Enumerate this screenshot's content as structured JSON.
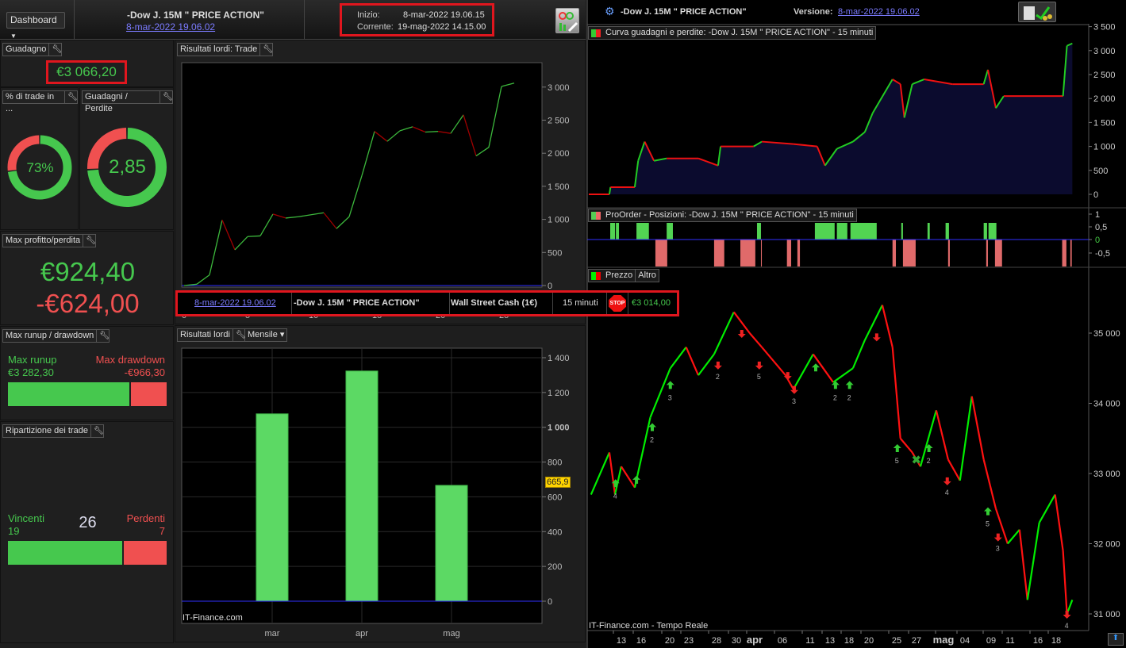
{
  "header": {
    "dashboard_label": "Dashboard",
    "strategy_title": "-Dow J. 15M \" PRICE ACTION\"",
    "strategy_date": "8-mar-2022 19.06.02",
    "start_label": "Inizio:",
    "start_value": "8-mar-2022 19.06.15",
    "current_label": "Corrente:",
    "current_value": "19-mag-2022 14.15.00"
  },
  "guadagno": {
    "title": "Guadagno",
    "value": "€3 066,20"
  },
  "pct_trade": {
    "title": "% di trade in ...",
    "value": "73%",
    "fraction": 0.73
  },
  "gain_loss": {
    "title": "Guadagni / Perdite",
    "value": "2,85",
    "ratio": 2.85
  },
  "max_pl": {
    "title": "Max profitto/perdita",
    "profit": "€924,40",
    "loss": "-€624,00"
  },
  "runup": {
    "title": "Max runup / drawdown",
    "runup_label": "Max runup",
    "runup_value": "€3 282,30",
    "drawdown_label": "Max drawdown",
    "drawdown_value": "-€966,30",
    "runup_amount": 3282.3,
    "drawdown_amount": 966.3
  },
  "ripartizione": {
    "title": "Ripartizione dei trade",
    "win_label": "Vincenti",
    "win_count": "19",
    "total": "26",
    "loss_label": "Perdenti",
    "loss_count": "7"
  },
  "colors": {
    "green": "#46c84e",
    "red": "#f05050",
    "equity_up": "#3cb83c",
    "equity_down": "#a00000",
    "axis_zero": "#3030ff",
    "bar": "#5cd964",
    "highlight": "#ffd400"
  },
  "chart_data": [
    {
      "type": "line",
      "title": "Risultati lordi: Trade",
      "xlabel": "",
      "ylabel": "",
      "x_ticks": [
        "0",
        "5",
        "10",
        "15",
        "20",
        "25"
      ],
      "y_ticks": [
        "0",
        "500",
        "1 000",
        "1 500",
        "2 000",
        "2 500",
        "3 000"
      ],
      "ylim": [
        0,
        3300
      ],
      "values": [
        0,
        20,
        160,
        990,
        540,
        740,
        750,
        1080,
        1020,
        1040,
        1070,
        1100,
        860,
        1040,
        1660,
        2330,
        2180,
        2340,
        2400,
        2320,
        2330,
        2300,
        2580,
        1960,
        2090,
        3010,
        3060
      ]
    },
    {
      "type": "bar",
      "title": "Risultati lordi",
      "period": "Mensile",
      "categories": [
        "mar",
        "apr",
        "mag"
      ],
      "values": [
        1077.0,
        1323.3,
        665.9
      ],
      "highlight_label": "665,9",
      "y_ticks": [
        "0",
        "200",
        "400",
        "600",
        "800",
        "1 000",
        "1 200",
        "1 400"
      ],
      "ylim": [
        -130,
        1460
      ],
      "watermark": "IT-Finance.com"
    },
    {
      "type": "line",
      "title": "Curva guadagni e perdite: -Dow J. 15M \" PRICE ACTION\" - 15 minuti",
      "y_ticks": [
        "0",
        "500",
        "1 000",
        "1 500",
        "2 000",
        "2 500",
        "3 000",
        "3 500"
      ],
      "points": [
        [
          "2022-03-08T19:00",
          0
        ],
        [
          "2022-03-11T20:00",
          0
        ],
        [
          "2022-03-12T00:00",
          150
        ],
        [
          "2022-03-15T14:00",
          150
        ],
        [
          "2022-03-16T02:00",
          700
        ],
        [
          "2022-03-17T01:00",
          1100
        ],
        [
          "2022-03-18T10:00",
          700
        ],
        [
          "2022-03-20T07:00",
          750
        ],
        [
          "2022-03-24T23:00",
          750
        ],
        [
          "2022-03-27T21:00",
          600
        ],
        [
          "2022-03-28T06:00",
          1000
        ],
        [
          "2022-04-02T03:00",
          1000
        ],
        [
          "2022-04-03T08:00",
          1100
        ],
        [
          "2022-04-08T00:00",
          1050
        ],
        [
          "2022-04-11T12:00",
          1000
        ],
        [
          "2022-04-12T16:00",
          600
        ],
        [
          "2022-04-14T10:00",
          950
        ],
        [
          "2022-04-16T19:00",
          1100
        ],
        [
          "2022-04-18T13:00",
          1300
        ],
        [
          "2022-04-19T17:00",
          1700
        ],
        [
          "2022-04-22T15:00",
          2400
        ],
        [
          "2022-04-23T19:00",
          2300
        ],
        [
          "2022-04-24T09:00",
          1600
        ],
        [
          "2022-04-25T13:00",
          2300
        ],
        [
          "2022-04-27T07:00",
          2400
        ],
        [
          "2022-05-01T11:00",
          2300
        ],
        [
          "2022-05-06T02:00",
          2300
        ],
        [
          "2022-05-06T17:00",
          2600
        ],
        [
          "2022-05-07T21:00",
          1800
        ],
        [
          "2022-05-09T01:00",
          2050
        ],
        [
          "2022-05-17T19:00",
          2050
        ],
        [
          "2022-05-18T09:00",
          3100
        ],
        [
          "2022-05-19T04:00",
          3150
        ]
      ]
    },
    {
      "type": "bar",
      "title": "ProOrder - Posizioni: -Dow J. 15M \" PRICE ACTION\" - 15 minuti",
      "y_ticks": [
        "1",
        "0,5",
        "0",
        "-0,5"
      ],
      "long": [
        [
          "2022-03-11T23:00",
          "2022-03-12T16:00"
        ],
        [
          "2022-03-12T19:00",
          "2022-03-13T06:00"
        ],
        [
          "2022-03-15T20:00",
          "2022-03-17T16:00"
        ],
        [
          "2022-03-20T07:00",
          "2022-03-21T05:00"
        ],
        [
          "2022-04-02T15:00",
          "2022-04-03T05:00"
        ],
        [
          "2022-04-11T04:00",
          "2022-04-14T02:00"
        ],
        [
          "2022-04-14T10:00",
          "2022-04-15T23:00"
        ],
        [
          "2022-04-16T10:00",
          "2022-04-20T07:00"
        ],
        [
          "2022-04-23T22:00",
          "2022-04-24T04:00"
        ],
        [
          "2022-04-27T19:00",
          "2022-04-28T03:00"
        ],
        [
          "2022-04-30T11:00",
          "2022-04-30T23:00"
        ],
        [
          "2022-05-06T02:00",
          "2022-05-06T14:00"
        ],
        [
          "2022-05-06T19:00",
          "2022-05-07T23:00"
        ]
      ],
      "short": [
        [
          "2022-03-18T15:00",
          "2022-03-20T09:00"
        ],
        [
          "2022-03-27T07:00",
          "2022-03-28T19:00"
        ],
        [
          "2022-03-31T04:00",
          "2022-04-02T09:00"
        ],
        [
          "2022-04-03T05:00",
          "2022-04-03T08:00"
        ],
        [
          "2022-04-07T01:00",
          "2022-04-07T16:00"
        ],
        [
          "2022-04-08T14:00",
          "2022-04-08T23:00"
        ],
        [
          "2022-04-22T15:00",
          "2022-04-23T03:00"
        ],
        [
          "2022-04-24T04:00",
          "2022-04-26T01:00"
        ],
        [
          "2022-04-30T20:00",
          "2022-05-01T02:00"
        ],
        [
          "2022-05-06T11:00",
          "2022-05-06T17:00"
        ],
        [
          "2022-05-07T18:00",
          "2022-05-08T19:00"
        ],
        [
          "2022-05-17T16:00",
          "2022-05-18T07:00"
        ],
        [
          "2022-05-18T21:00",
          "2022-05-19T02:00"
        ]
      ]
    },
    {
      "type": "line",
      "title": "Prezzo",
      "y_ticks": [
        "31 000",
        "32 000",
        "33 000",
        "34 000",
        "35 000"
      ],
      "x_ticks": [
        "13",
        "16",
        "20",
        "23",
        "28",
        "30",
        "apr",
        "06",
        "11",
        "13",
        "18",
        "20",
        "25",
        "27",
        "mag",
        "04",
        "09",
        "11",
        "16",
        "18"
      ],
      "watermark": "IT-Finance.com - Tempo Reale",
      "points": [
        [
          "2022-03-09T03:00",
          32700
        ],
        [
          "2022-03-11T20:00",
          33300
        ],
        [
          "2022-03-12T16:00",
          32700
        ],
        [
          "2022-03-13T14:00",
          33100
        ],
        [
          "2022-03-15T14:00",
          32800
        ],
        [
          "2022-03-17T21:00",
          33800
        ],
        [
          "2022-03-20T20:00",
          34500
        ],
        [
          "2022-03-23T04:00",
          34800
        ],
        [
          "2022-03-24T23:00",
          34400
        ],
        [
          "2022-03-27T07:00",
          34700
        ],
        [
          "2022-03-30T05:00",
          35300
        ],
        [
          "2022-04-01T13:00",
          35000
        ],
        [
          "2022-04-03T08:00",
          34800
        ],
        [
          "2022-04-06T20:00",
          34400
        ],
        [
          "2022-04-08T00:00",
          34200
        ],
        [
          "2022-04-10T22:00",
          34700
        ],
        [
          "2022-04-13T21:00",
          34300
        ],
        [
          "2022-04-16T19:00",
          34500
        ],
        [
          "2022-04-18T13:00",
          34900
        ],
        [
          "2022-04-21T03:00",
          35400
        ],
        [
          "2022-04-22T15:00",
          34800
        ],
        [
          "2022-04-23T19:00",
          33500
        ],
        [
          "2022-04-25T13:00",
          33300
        ],
        [
          "2022-04-26T18:00",
          33100
        ],
        [
          "2022-04-29T02:00",
          33900
        ],
        [
          "2022-04-30T20:00",
          33200
        ],
        [
          "2022-05-02T14:00",
          32900
        ],
        [
          "2022-05-04T08:00",
          34100
        ],
        [
          "2022-05-06T02:00",
          33200
        ],
        [
          "2022-05-07T21:00",
          32500
        ],
        [
          "2022-05-09T15:00",
          32000
        ],
        [
          "2022-05-11T09:00",
          32200
        ],
        [
          "2022-05-12T13:00",
          31200
        ],
        [
          "2022-05-14T07:00",
          32300
        ],
        [
          "2022-05-16T15:00",
          32700
        ],
        [
          "2022-05-17T19:00",
          31900
        ],
        [
          "2022-05-18T09:00",
          31000
        ],
        [
          "2022-05-19T04:00",
          31200
        ]
      ],
      "markers": [
        [
          "2022-03-12T18:00",
          32850,
          "buy",
          "4"
        ],
        [
          "2022-03-15T20:00",
          32900,
          "buy",
          ""
        ],
        [
          "2022-03-18T04:00",
          33650,
          "buy",
          "2"
        ],
        [
          "2022-03-20T20:00",
          34250,
          "buy",
          "3"
        ],
        [
          "2022-03-27T21:00",
          34550,
          "sell",
          "2"
        ],
        [
          "2022-03-31T09:00",
          35000,
          "sell",
          ""
        ],
        [
          "2022-04-02T23:00",
          34550,
          "sell",
          "5"
        ],
        [
          "2022-04-07T04:00",
          34400,
          "sell",
          ""
        ],
        [
          "2022-04-08T03:00",
          34200,
          "sell",
          "3"
        ],
        [
          "2022-04-11T07:00",
          34500,
          "buy",
          ""
        ],
        [
          "2022-04-14T05:00",
          34250,
          "buy",
          "2"
        ],
        [
          "2022-04-16T07:00",
          34250,
          "buy",
          "2"
        ],
        [
          "2022-04-20T07:00",
          34950,
          "sell",
          ""
        ],
        [
          "2022-04-23T08:00",
          33350,
          "buy",
          "5"
        ],
        [
          "2022-04-26T01:00",
          33200,
          "close",
          ""
        ],
        [
          "2022-04-28T00:00",
          33350,
          "buy",
          "2"
        ],
        [
          "2022-04-30T17:00",
          32900,
          "sell",
          "4"
        ],
        [
          "2022-05-06T17:00",
          32450,
          "buy",
          "5"
        ],
        [
          "2022-05-08T05:00",
          32100,
          "sell",
          "3"
        ],
        [
          "2022-05-18T09:00",
          31000,
          "sell",
          "4"
        ]
      ]
    }
  ],
  "right_header": {
    "strategy_title": "-Dow J. 15M \" PRICE ACTION\"",
    "version_label": "Versione:",
    "version_value": "8-mar-2022 19.06.02"
  },
  "trade_row": {
    "date": "8-mar-2022 19.06.02",
    "strategy": "-Dow J. 15M \" PRICE ACTION\"",
    "instrument": "Wall Street Cash (1€)",
    "timeframe": "15 minuti",
    "stop_label": "STOP",
    "result": "€3 014,00"
  },
  "price_tabs": {
    "price": "Prezzo",
    "other": "Altro"
  }
}
